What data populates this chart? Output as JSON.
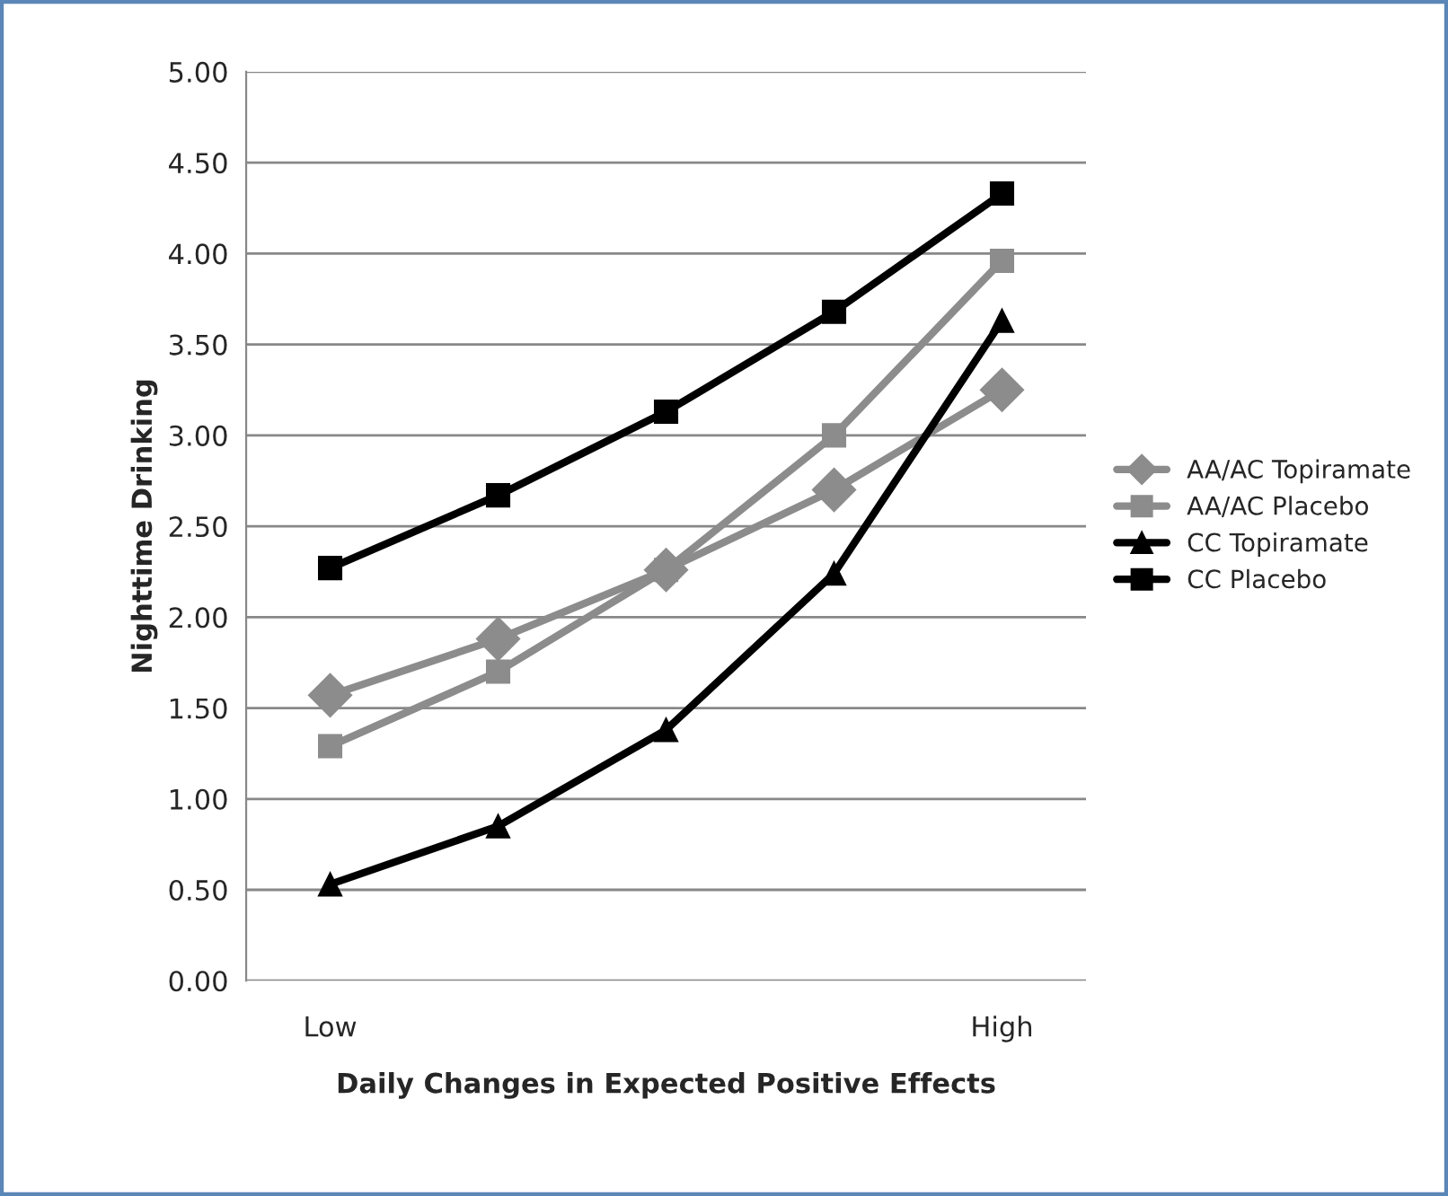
{
  "chart_data": {
    "type": "line",
    "xlabel": "Daily Changes in Expected Positive Effects",
    "ylabel": "Nighttime Drinking",
    "categories": [
      "Low",
      null,
      null,
      null,
      "High"
    ],
    "series": [
      {
        "name": "AA/AC Topiramate",
        "color": "#8c8c8c",
        "marker": "diamond",
        "values": [
          1.57,
          1.88,
          2.26,
          2.7,
          3.25
        ]
      },
      {
        "name": "AA/AC Placebo",
        "color": "#8c8c8c",
        "marker": "square",
        "values": [
          1.29,
          1.7,
          2.26,
          3.0,
          3.96
        ]
      },
      {
        "name": "CC Topiramate",
        "color": "#000000",
        "marker": "triangle",
        "values": [
          0.53,
          0.85,
          1.38,
          2.24,
          3.63
        ]
      },
      {
        "name": "CC Placebo",
        "color": "#000000",
        "marker": "square",
        "values": [
          2.27,
          2.67,
          3.13,
          3.68,
          4.33
        ]
      }
    ],
    "ylim": [
      0,
      5
    ],
    "yticks": [
      {
        "value": 0,
        "label": "0.00"
      },
      {
        "value": 0.5,
        "label": "0.50"
      },
      {
        "value": 1,
        "label": "1.00"
      },
      {
        "value": 1.5,
        "label": "1.50"
      },
      {
        "value": 2,
        "label": "2.00"
      },
      {
        "value": 2.5,
        "label": "2.50"
      },
      {
        "value": 3,
        "label": "3.00"
      },
      {
        "value": 3.5,
        "label": "3.50"
      },
      {
        "value": 4,
        "label": "4.00"
      },
      {
        "value": 4.5,
        "label": "4.50"
      },
      {
        "value": 5,
        "label": "5.00"
      }
    ],
    "grid": "y",
    "legend": "right",
    "line_style": "solid"
  }
}
